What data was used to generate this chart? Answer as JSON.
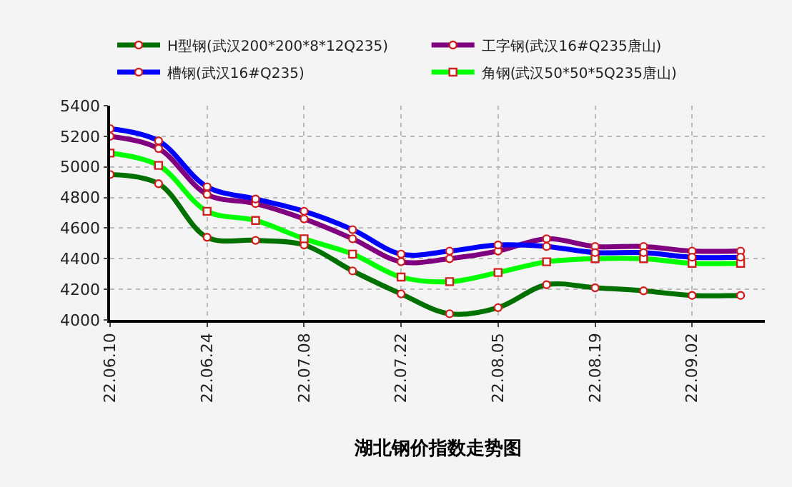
{
  "chart_data": {
    "type": "line",
    "title": "湖北钢价指数走势图",
    "categories": [
      "22.06.10",
      null,
      "22.06.24",
      null,
      "22.07.08",
      null,
      "22.07.22",
      null,
      "22.08.05",
      null,
      "22.08.19",
      null,
      "22.09.02",
      null
    ],
    "series": [
      {
        "name": "H型钢(武汉200*200*8*12Q235)",
        "color": "#007000",
        "marker": "circle",
        "values": [
          4950,
          4890,
          4540,
          4520,
          4490,
          4320,
          4170,
          4040,
          4080,
          4230,
          4210,
          4190,
          4160,
          4160
        ]
      },
      {
        "name": "工字钢(武汉16#Q235唐山)",
        "color": "#800080",
        "marker": "circle",
        "values": [
          5200,
          5120,
          4820,
          4760,
          4660,
          4530,
          4380,
          4400,
          4450,
          4530,
          4480,
          4480,
          4450,
          4450
        ]
      },
      {
        "name": "槽钢(武汉16#Q235)",
        "color": "#0000ff",
        "marker": "circle",
        "values": [
          5250,
          5170,
          4870,
          4790,
          4710,
          4590,
          4430,
          4450,
          4490,
          4480,
          4440,
          4440,
          4410,
          4410
        ]
      },
      {
        "name": "角钢(武汉50*50*5Q235唐山)",
        "color": "#00ff00",
        "marker": "square",
        "values": [
          5090,
          5010,
          4710,
          4650,
          4530,
          4430,
          4280,
          4250,
          4310,
          4380,
          4400,
          4400,
          4370,
          4370
        ]
      }
    ],
    "ylim": [
      4000,
      5400
    ],
    "yticks": [
      4000,
      4200,
      4400,
      4600,
      4800,
      5000,
      5200,
      5400
    ],
    "grid": true,
    "legend": "top",
    "line_style": "solid"
  }
}
